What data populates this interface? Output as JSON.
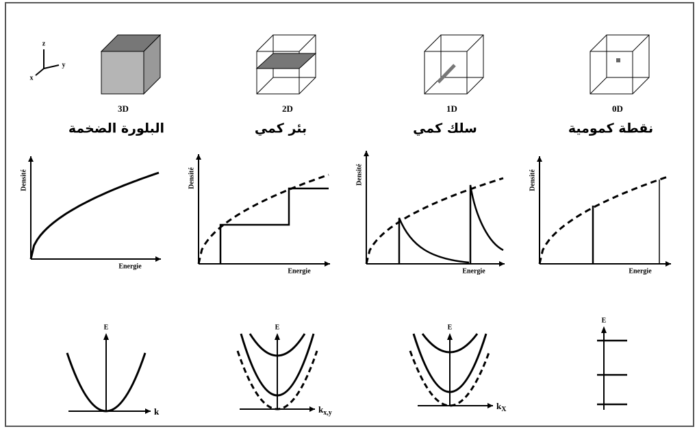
{
  "axes_triad": {
    "z": "z",
    "y": "y",
    "x": "x"
  },
  "columns": [
    {
      "dimension": "3D",
      "name": "البلورة الضخمة",
      "density_y_label": "Densité",
      "density_x_label": "Energie",
      "dispersion_y_label": "E",
      "dispersion_x_label": "k"
    },
    {
      "dimension": "2D",
      "name": "بئر كمي",
      "density_y_label": "Densité",
      "density_x_label": "Energie",
      "dispersion_y_label": "E",
      "dispersion_x_label": {
        "base": "k",
        "sub": "x,y"
      }
    },
    {
      "dimension": "1D",
      "name": "سلك كمي",
      "density_y_label": "Densité",
      "density_x_label": "Energie",
      "dispersion_y_label": "E",
      "dispersion_x_label": {
        "base": "k",
        "sub": "X"
      }
    },
    {
      "dimension": "0D",
      "name": "نقطة كمومية",
      "density_y_label": "Densité",
      "density_x_label": "Energie",
      "dispersion_y_label": "E"
    }
  ]
}
